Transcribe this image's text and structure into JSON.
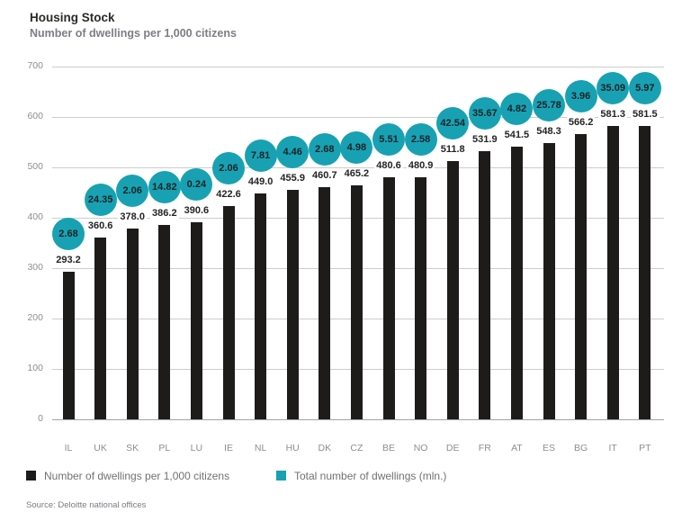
{
  "title": "Housing Stock",
  "subtitle": "Number of dwellings per 1,000 citizens",
  "source": "Source: Deloitte national offices",
  "legend": [
    {
      "label": "Number of dwellings per 1,000 citizens",
      "color": "#1e1c1a"
    },
    {
      "label": "Total number of dwellings (mln.)",
      "color": "#18a1b3"
    }
  ],
  "colors": {
    "bar": "#1e1c1a",
    "bubble": "#18a1b3",
    "grid": "#cdcdcd",
    "axis_line": "#a3a3a3"
  },
  "chart_data": {
    "type": "bar",
    "title": "Housing Stock",
    "subtitle": "Number of dwellings per 1,000 citizens",
    "categories": [
      "IL",
      "UK",
      "SK",
      "PL",
      "LU",
      "IE",
      "NL",
      "HU",
      "DK",
      "CZ",
      "BE",
      "NO",
      "DE",
      "FR",
      "AT",
      "ES",
      "BG",
      "IT",
      "PT"
    ],
    "series": [
      {
        "name": "Number of dwellings per 1,000 citizens",
        "values": [
          293.2,
          360.6,
          378.0,
          386.2,
          390.6,
          422.6,
          449.0,
          455.9,
          460.7,
          465.2,
          480.6,
          480.9,
          511.8,
          531.9,
          541.5,
          548.3,
          566.2,
          581.3,
          581.5
        ]
      },
      {
        "name": "Total number of dwellings (mln.)",
        "values": [
          2.68,
          24.35,
          2.06,
          14.82,
          0.24,
          2.06,
          7.81,
          4.46,
          2.68,
          4.98,
          5.51,
          2.58,
          42.54,
          35.67,
          4.82,
          25.78,
          3.96,
          35.09,
          5.97
        ]
      }
    ],
    "xlabel": "",
    "ylabel": "",
    "ylim": [
      0,
      700
    ],
    "yticks": [
      0,
      100,
      200,
      300,
      400,
      500,
      600,
      700
    ],
    "grid": true,
    "legend_position": "bottom"
  }
}
